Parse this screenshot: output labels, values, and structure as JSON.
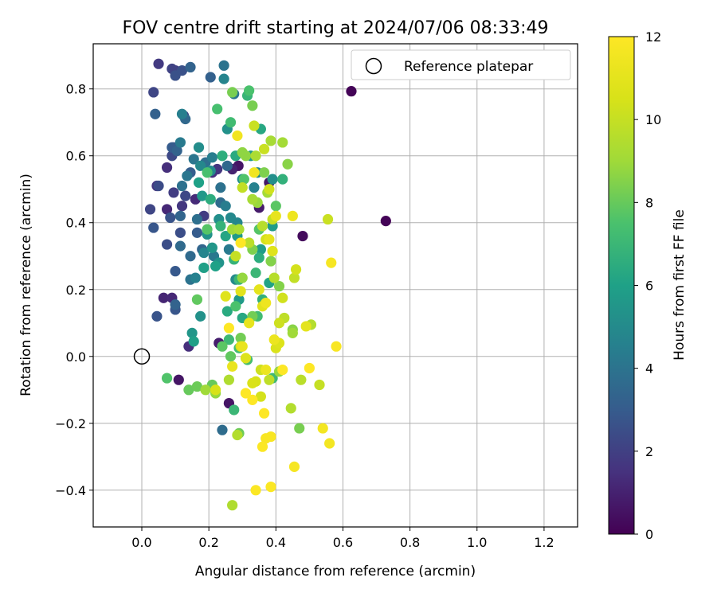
{
  "chart_data": {
    "type": "scatter",
    "title": "FOV centre drift starting at 2024/07/06 08:33:49",
    "xlabel": "Angular distance from reference (arcmin)",
    "ylabel": "Rotation from reference (arcmin)",
    "xlim": [
      -0.145,
      1.3
    ],
    "ylim": [
      -0.51,
      0.935
    ],
    "xticks": [
      0.0,
      0.2,
      0.4,
      0.6,
      0.8,
      1.0,
      1.2
    ],
    "xtick_labels": [
      "0.0",
      "0.2",
      "0.4",
      "0.6",
      "0.8",
      "1.0",
      "1.2"
    ],
    "yticks": [
      -0.4,
      -0.2,
      0.0,
      0.2,
      0.4,
      0.6,
      0.8
    ],
    "ytick_labels": [
      "−0.4",
      "−0.2",
      "0.0",
      "0.2",
      "0.4",
      "0.6",
      "0.8"
    ],
    "grid": true,
    "legend": {
      "placement": "upper right",
      "entries": [
        "Reference platepar"
      ]
    },
    "reference_point": {
      "x": 0.0,
      "y": 0.0,
      "label": "Reference platepar"
    },
    "colorbar": {
      "label": "Hours from first FF file",
      "range": [
        0,
        12
      ],
      "ticks": [
        0,
        2,
        4,
        6,
        8,
        10,
        12
      ],
      "tick_labels": [
        "0",
        "2",
        "4",
        "6",
        "8",
        "10",
        "12"
      ],
      "colormap": "viridis"
    },
    "points": [
      {
        "x": 0.625,
        "y": 0.793,
        "c": 0.1
      },
      {
        "x": 0.728,
        "y": 0.405,
        "c": 0.1
      },
      {
        "x": 0.48,
        "y": 0.36,
        "c": 0.3
      },
      {
        "x": 0.11,
        "y": -0.07,
        "c": 0.6
      },
      {
        "x": 0.26,
        "y": -0.14,
        "c": 0.6
      },
      {
        "x": 0.288,
        "y": 0.57,
        "c": 0.6
      },
      {
        "x": 0.38,
        "y": 0.52,
        "c": 0.7
      },
      {
        "x": 0.35,
        "y": 0.445,
        "c": 0.8
      },
      {
        "x": 0.23,
        "y": 0.04,
        "c": 0.9
      },
      {
        "x": 0.27,
        "y": 0.56,
        "c": 1.0
      },
      {
        "x": 0.065,
        "y": 0.175,
        "c": 1.1
      },
      {
        "x": 0.09,
        "y": 0.175,
        "c": 1.2
      },
      {
        "x": 0.075,
        "y": 0.44,
        "c": 1.2
      },
      {
        "x": 0.16,
        "y": 0.47,
        "c": 1.3
      },
      {
        "x": 0.075,
        "y": 0.565,
        "c": 1.4
      },
      {
        "x": 0.14,
        "y": 0.03,
        "c": 1.4
      },
      {
        "x": 0.21,
        "y": 0.55,
        "c": 1.5
      },
      {
        "x": 0.045,
        "y": 0.51,
        "c": 1.6
      },
      {
        "x": 0.225,
        "y": 0.56,
        "c": 1.6
      },
      {
        "x": 0.12,
        "y": 0.45,
        "c": 1.7
      },
      {
        "x": 0.05,
        "y": 0.875,
        "c": 1.8
      },
      {
        "x": 0.1,
        "y": 0.855,
        "c": 1.9
      },
      {
        "x": 0.095,
        "y": 0.49,
        "c": 1.9
      },
      {
        "x": 0.185,
        "y": 0.42,
        "c": 1.9
      },
      {
        "x": 0.125,
        "y": 0.72,
        "c": 2.0
      },
      {
        "x": 0.09,
        "y": 0.86,
        "c": 2.1
      },
      {
        "x": 0.035,
        "y": 0.79,
        "c": 2.2
      },
      {
        "x": 0.025,
        "y": 0.44,
        "c": 2.2
      },
      {
        "x": 0.09,
        "y": 0.6,
        "c": 2.3
      },
      {
        "x": 0.13,
        "y": 0.48,
        "c": 2.3
      },
      {
        "x": 0.05,
        "y": 0.51,
        "c": 2.4
      },
      {
        "x": 0.075,
        "y": 0.335,
        "c": 2.5
      },
      {
        "x": 0.115,
        "y": 0.37,
        "c": 2.5
      },
      {
        "x": 0.1,
        "y": 0.84,
        "c": 2.6
      },
      {
        "x": 0.12,
        "y": 0.855,
        "c": 2.6
      },
      {
        "x": 0.095,
        "y": 0.625,
        "c": 2.6
      },
      {
        "x": 0.085,
        "y": 0.415,
        "c": 2.7
      },
      {
        "x": 0.045,
        "y": 0.12,
        "c": 2.7
      },
      {
        "x": 0.1,
        "y": 0.14,
        "c": 2.8
      },
      {
        "x": 0.035,
        "y": 0.385,
        "c": 2.8
      },
      {
        "x": 0.1,
        "y": 0.255,
        "c": 2.9
      },
      {
        "x": 0.165,
        "y": 0.37,
        "c": 3.0
      },
      {
        "x": 0.09,
        "y": 0.625,
        "c": 3.0
      },
      {
        "x": 0.145,
        "y": 0.55,
        "c": 3.1
      },
      {
        "x": 0.04,
        "y": 0.725,
        "c": 3.2
      },
      {
        "x": 0.205,
        "y": 0.835,
        "c": 3.2
      },
      {
        "x": 0.145,
        "y": 0.865,
        "c": 3.3
      },
      {
        "x": 0.105,
        "y": 0.615,
        "c": 3.3
      },
      {
        "x": 0.1,
        "y": 0.155,
        "c": 3.3
      },
      {
        "x": 0.18,
        "y": 0.32,
        "c": 3.4
      },
      {
        "x": 0.115,
        "y": 0.42,
        "c": 3.4
      },
      {
        "x": 0.13,
        "y": 0.71,
        "c": 3.5
      },
      {
        "x": 0.255,
        "y": 0.57,
        "c": 3.5
      },
      {
        "x": 0.115,
        "y": 0.33,
        "c": 3.6
      },
      {
        "x": 0.145,
        "y": 0.3,
        "c": 3.6
      },
      {
        "x": 0.24,
        "y": -0.22,
        "c": 3.7
      },
      {
        "x": 0.235,
        "y": 0.46,
        "c": 3.7
      },
      {
        "x": 0.19,
        "y": 0.58,
        "c": 3.8
      },
      {
        "x": 0.165,
        "y": 0.41,
        "c": 3.8
      },
      {
        "x": 0.12,
        "y": 0.51,
        "c": 3.9
      },
      {
        "x": 0.235,
        "y": 0.505,
        "c": 3.9
      },
      {
        "x": 0.145,
        "y": 0.23,
        "c": 4.0
      },
      {
        "x": 0.245,
        "y": 0.87,
        "c": 4.0
      },
      {
        "x": 0.275,
        "y": 0.785,
        "c": 4.1
      },
      {
        "x": 0.155,
        "y": 0.59,
        "c": 4.1
      },
      {
        "x": 0.135,
        "y": 0.54,
        "c": 4.1
      },
      {
        "x": 0.215,
        "y": 0.3,
        "c": 4.2
      },
      {
        "x": 0.26,
        "y": 0.32,
        "c": 4.3
      },
      {
        "x": 0.115,
        "y": 0.64,
        "c": 4.3
      },
      {
        "x": 0.21,
        "y": 0.595,
        "c": 4.4
      },
      {
        "x": 0.25,
        "y": 0.45,
        "c": 4.4
      },
      {
        "x": 0.12,
        "y": 0.725,
        "c": 4.5
      },
      {
        "x": 0.335,
        "y": 0.505,
        "c": 4.6
      },
      {
        "x": 0.16,
        "y": 0.235,
        "c": 4.6
      },
      {
        "x": 0.245,
        "y": 0.83,
        "c": 4.7
      },
      {
        "x": 0.185,
        "y": 0.31,
        "c": 4.7
      },
      {
        "x": 0.285,
        "y": 0.4,
        "c": 4.8
      },
      {
        "x": 0.345,
        "y": 0.55,
        "c": 4.8
      },
      {
        "x": 0.175,
        "y": 0.57,
        "c": 4.9
      },
      {
        "x": 0.265,
        "y": 0.415,
        "c": 4.9
      },
      {
        "x": 0.28,
        "y": 0.23,
        "c": 5.0
      },
      {
        "x": 0.205,
        "y": 0.555,
        "c": 5.0
      },
      {
        "x": 0.17,
        "y": 0.625,
        "c": 5.1
      },
      {
        "x": 0.3,
        "y": 0.53,
        "c": 5.1
      },
      {
        "x": 0.23,
        "y": 0.41,
        "c": 5.2
      },
      {
        "x": 0.39,
        "y": 0.53,
        "c": 5.2
      },
      {
        "x": 0.175,
        "y": 0.12,
        "c": 5.3
      },
      {
        "x": 0.255,
        "y": 0.68,
        "c": 5.3
      },
      {
        "x": 0.195,
        "y": 0.365,
        "c": 5.4
      },
      {
        "x": 0.23,
        "y": 0.28,
        "c": 5.4
      },
      {
        "x": 0.15,
        "y": 0.07,
        "c": 5.5
      },
      {
        "x": 0.21,
        "y": 0.325,
        "c": 5.5
      },
      {
        "x": 0.325,
        "y": 0.6,
        "c": 5.6
      },
      {
        "x": 0.18,
        "y": 0.48,
        "c": 5.6
      },
      {
        "x": 0.285,
        "y": 0.36,
        "c": 5.7
      },
      {
        "x": 0.29,
        "y": 0.17,
        "c": 5.7
      },
      {
        "x": 0.355,
        "y": 0.32,
        "c": 5.8
      },
      {
        "x": 0.39,
        "y": 0.39,
        "c": 5.8
      },
      {
        "x": 0.185,
        "y": 0.265,
        "c": 5.9
      },
      {
        "x": 0.155,
        "y": 0.045,
        "c": 5.9
      },
      {
        "x": 0.17,
        "y": 0.52,
        "c": 6.0
      },
      {
        "x": 0.22,
        "y": 0.27,
        "c": 6.0
      },
      {
        "x": 0.38,
        "y": 0.22,
        "c": 6.1
      },
      {
        "x": 0.25,
        "y": 0.36,
        "c": 6.2
      },
      {
        "x": 0.3,
        "y": 0.115,
        "c": 6.3
      },
      {
        "x": 0.355,
        "y": 0.68,
        "c": 6.3
      },
      {
        "x": 0.255,
        "y": 0.135,
        "c": 6.4
      },
      {
        "x": 0.28,
        "y": 0.6,
        "c": 6.4
      },
      {
        "x": 0.205,
        "y": 0.47,
        "c": 6.5
      },
      {
        "x": 0.35,
        "y": 0.295,
        "c": 6.5
      },
      {
        "x": 0.24,
        "y": 0.6,
        "c": 6.6
      },
      {
        "x": 0.36,
        "y": 0.17,
        "c": 6.7
      },
      {
        "x": 0.42,
        "y": 0.53,
        "c": 6.7
      },
      {
        "x": 0.235,
        "y": 0.39,
        "c": 6.8
      },
      {
        "x": 0.275,
        "y": 0.29,
        "c": 6.8
      },
      {
        "x": 0.315,
        "y": 0.78,
        "c": 6.9
      },
      {
        "x": 0.29,
        "y": 0.23,
        "c": 6.9
      },
      {
        "x": 0.34,
        "y": 0.25,
        "c": 7.0
      },
      {
        "x": 0.275,
        "y": -0.16,
        "c": 7.0
      },
      {
        "x": 0.39,
        "y": -0.065,
        "c": 7.1
      },
      {
        "x": 0.26,
        "y": 0.05,
        "c": 7.1
      },
      {
        "x": 0.265,
        "y": 0.7,
        "c": 7.2
      },
      {
        "x": 0.345,
        "y": 0.12,
        "c": 7.2
      },
      {
        "x": 0.29,
        "y": 0.025,
        "c": 7.3
      },
      {
        "x": 0.315,
        "y": -0.01,
        "c": 7.3
      },
      {
        "x": 0.225,
        "y": 0.74,
        "c": 7.4
      },
      {
        "x": 0.195,
        "y": 0.55,
        "c": 7.4
      },
      {
        "x": 0.28,
        "y": 0.15,
        "c": 7.5
      },
      {
        "x": 0.32,
        "y": 0.795,
        "c": 7.5
      },
      {
        "x": 0.305,
        "y": 0.53,
        "c": 7.6
      },
      {
        "x": 0.075,
        "y": -0.065,
        "c": 7.6
      },
      {
        "x": 0.195,
        "y": 0.38,
        "c": 7.7
      },
      {
        "x": 0.35,
        "y": 0.38,
        "c": 7.7
      },
      {
        "x": 0.24,
        "y": 0.03,
        "c": 7.8
      },
      {
        "x": 0.4,
        "y": 0.45,
        "c": 7.8
      },
      {
        "x": 0.165,
        "y": 0.17,
        "c": 7.9
      },
      {
        "x": 0.265,
        "y": 0.0,
        "c": 7.9
      },
      {
        "x": 0.21,
        "y": -0.085,
        "c": 8.0
      },
      {
        "x": 0.14,
        "y": -0.1,
        "c": 8.0
      },
      {
        "x": 0.165,
        "y": -0.09,
        "c": 8.1
      },
      {
        "x": 0.29,
        "y": -0.23,
        "c": 8.1
      },
      {
        "x": 0.33,
        "y": 0.12,
        "c": 8.2
      },
      {
        "x": 0.295,
        "y": 0.055,
        "c": 8.2
      },
      {
        "x": 0.47,
        "y": -0.215,
        "c": 8.3
      },
      {
        "x": 0.33,
        "y": 0.75,
        "c": 8.3
      },
      {
        "x": 0.27,
        "y": 0.79,
        "c": 8.3
      },
      {
        "x": 0.365,
        "y": 0.55,
        "c": 8.4
      },
      {
        "x": 0.33,
        "y": 0.32,
        "c": 8.4
      },
      {
        "x": 0.385,
        "y": 0.285,
        "c": 8.5
      },
      {
        "x": 0.41,
        "y": 0.21,
        "c": 8.5
      },
      {
        "x": 0.45,
        "y": 0.08,
        "c": 8.6
      },
      {
        "x": 0.435,
        "y": 0.575,
        "c": 8.6
      },
      {
        "x": 0.31,
        "y": 0.6,
        "c": 8.7
      },
      {
        "x": 0.3,
        "y": 0.61,
        "c": 8.7
      },
      {
        "x": 0.3,
        "y": 0.235,
        "c": 8.8
      },
      {
        "x": 0.22,
        "y": -0.11,
        "c": 8.8
      },
      {
        "x": 0.345,
        "y": 0.46,
        "c": 8.9
      },
      {
        "x": 0.41,
        "y": -0.045,
        "c": 8.9
      },
      {
        "x": 0.19,
        "y": -0.1,
        "c": 9.0
      },
      {
        "x": 0.45,
        "y": 0.07,
        "c": 9.0
      },
      {
        "x": 0.27,
        "y": 0.38,
        "c": 9.0
      },
      {
        "x": 0.42,
        "y": 0.64,
        "c": 9.1
      },
      {
        "x": 0.375,
        "y": 0.49,
        "c": 9.1
      },
      {
        "x": 0.385,
        "y": 0.645,
        "c": 9.2
      },
      {
        "x": 0.33,
        "y": 0.47,
        "c": 9.2
      },
      {
        "x": 0.29,
        "y": 0.38,
        "c": 9.3
      },
      {
        "x": 0.34,
        "y": 0.6,
        "c": 9.3
      },
      {
        "x": 0.26,
        "y": -0.07,
        "c": 9.4
      },
      {
        "x": 0.27,
        "y": -0.445,
        "c": 9.4
      },
      {
        "x": 0.285,
        "y": -0.235,
        "c": 9.5
      },
      {
        "x": 0.505,
        "y": 0.095,
        "c": 9.5
      },
      {
        "x": 0.445,
        "y": -0.155,
        "c": 9.5
      },
      {
        "x": 0.36,
        "y": 0.39,
        "c": 9.6
      },
      {
        "x": 0.395,
        "y": 0.235,
        "c": 9.6
      },
      {
        "x": 0.475,
        "y": -0.07,
        "c": 9.7
      },
      {
        "x": 0.32,
        "y": 0.34,
        "c": 9.7
      },
      {
        "x": 0.425,
        "y": 0.115,
        "c": 9.8
      },
      {
        "x": 0.38,
        "y": -0.07,
        "c": 9.8
      },
      {
        "x": 0.455,
        "y": 0.235,
        "c": 9.9
      },
      {
        "x": 0.3,
        "y": 0.505,
        "c": 9.9
      },
      {
        "x": 0.53,
        "y": -0.085,
        "c": 10.0
      },
      {
        "x": 0.28,
        "y": 0.3,
        "c": 10.0
      },
      {
        "x": 0.39,
        "y": 0.41,
        "c": 10.0
      },
      {
        "x": 0.365,
        "y": 0.62,
        "c": 10.1
      },
      {
        "x": 0.555,
        "y": 0.41,
        "c": 10.1
      },
      {
        "x": 0.335,
        "y": 0.69,
        "c": 10.1
      },
      {
        "x": 0.355,
        "y": -0.04,
        "c": 10.2
      },
      {
        "x": 0.41,
        "y": 0.1,
        "c": 10.2
      },
      {
        "x": 0.42,
        "y": 0.175,
        "c": 10.3
      },
      {
        "x": 0.38,
        "y": 0.5,
        "c": 10.3
      },
      {
        "x": 0.355,
        "y": -0.12,
        "c": 10.4
      },
      {
        "x": 0.46,
        "y": 0.26,
        "c": 10.4
      },
      {
        "x": 0.37,
        "y": 0.35,
        "c": 10.4
      },
      {
        "x": 0.22,
        "y": -0.1,
        "c": 10.5
      },
      {
        "x": 0.34,
        "y": -0.075,
        "c": 10.5
      },
      {
        "x": 0.33,
        "y": -0.08,
        "c": 10.6
      },
      {
        "x": 0.4,
        "y": 0.025,
        "c": 10.6
      },
      {
        "x": 0.295,
        "y": 0.03,
        "c": 10.6
      },
      {
        "x": 0.31,
        "y": -0.005,
        "c": 10.7
      },
      {
        "x": 0.41,
        "y": 0.04,
        "c": 10.7
      },
      {
        "x": 0.39,
        "y": 0.315,
        "c": 10.8
      },
      {
        "x": 0.25,
        "y": 0.18,
        "c": 10.8
      },
      {
        "x": 0.36,
        "y": 0.15,
        "c": 10.9
      },
      {
        "x": 0.295,
        "y": 0.195,
        "c": 10.9
      },
      {
        "x": 0.38,
        "y": 0.35,
        "c": 11.0
      },
      {
        "x": 0.49,
        "y": 0.09,
        "c": 11.0
      },
      {
        "x": 0.35,
        "y": 0.2,
        "c": 11.0
      },
      {
        "x": 0.32,
        "y": 0.1,
        "c": 11.1
      },
      {
        "x": 0.4,
        "y": 0.42,
        "c": 11.1
      },
      {
        "x": 0.27,
        "y": -0.03,
        "c": 11.2
      },
      {
        "x": 0.3,
        "y": 0.03,
        "c": 11.2
      },
      {
        "x": 0.395,
        "y": 0.05,
        "c": 11.3
      },
      {
        "x": 0.37,
        "y": -0.04,
        "c": 11.3
      },
      {
        "x": 0.45,
        "y": 0.42,
        "c": 11.4
      },
      {
        "x": 0.37,
        "y": 0.16,
        "c": 11.4
      },
      {
        "x": 0.285,
        "y": 0.66,
        "c": 11.5
      },
      {
        "x": 0.335,
        "y": 0.55,
        "c": 11.5
      },
      {
        "x": 0.56,
        "y": -0.26,
        "c": 11.6
      },
      {
        "x": 0.54,
        "y": -0.215,
        "c": 11.6
      },
      {
        "x": 0.455,
        "y": -0.33,
        "c": 11.7
      },
      {
        "x": 0.565,
        "y": 0.28,
        "c": 11.7
      },
      {
        "x": 0.58,
        "y": 0.03,
        "c": 11.8
      },
      {
        "x": 0.37,
        "y": -0.245,
        "c": 11.8
      },
      {
        "x": 0.385,
        "y": -0.24,
        "c": 11.8
      },
      {
        "x": 0.34,
        "y": -0.4,
        "c": 11.9
      },
      {
        "x": 0.385,
        "y": -0.39,
        "c": 11.9
      },
      {
        "x": 0.36,
        "y": -0.27,
        "c": 11.9
      },
      {
        "x": 0.31,
        "y": -0.11,
        "c": 12.0
      },
      {
        "x": 0.33,
        "y": -0.13,
        "c": 12.0
      },
      {
        "x": 0.365,
        "y": -0.17,
        "c": 12.0
      },
      {
        "x": 0.5,
        "y": -0.035,
        "c": 12.0
      },
      {
        "x": 0.42,
        "y": -0.04,
        "c": 12.0
      },
      {
        "x": 0.295,
        "y": 0.34,
        "c": 12.0
      },
      {
        "x": 0.26,
        "y": 0.085,
        "c": 12.0
      }
    ]
  }
}
